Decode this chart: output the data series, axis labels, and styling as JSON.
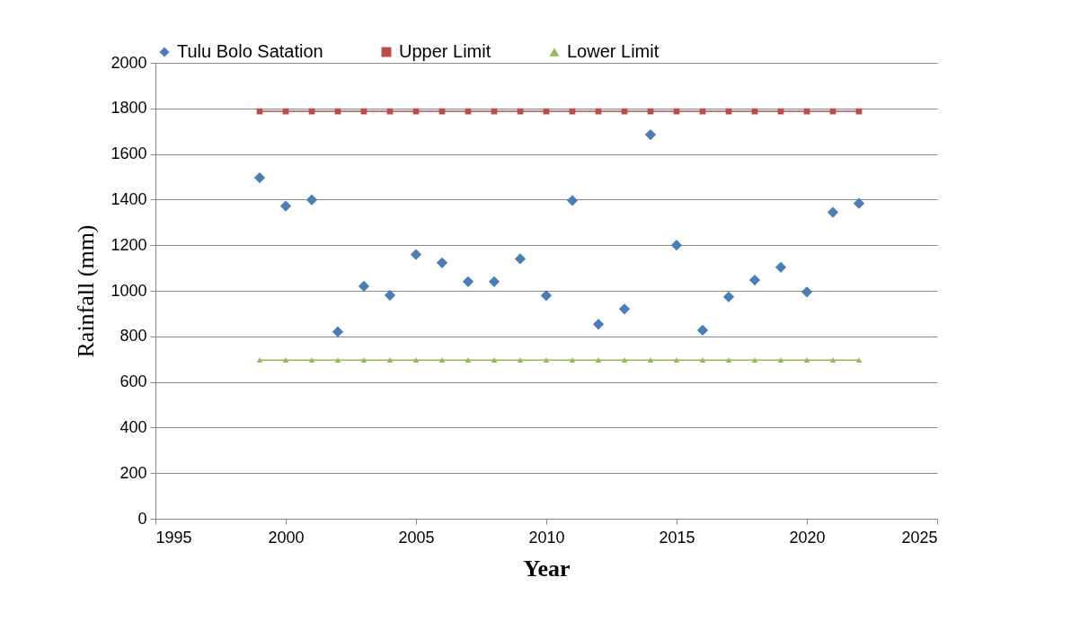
{
  "chart_data": {
    "type": "scatter",
    "xlabel": "Year",
    "ylabel": "Rainfall (mm)",
    "x": [
      1999,
      2000,
      2001,
      2002,
      2003,
      2004,
      2005,
      2006,
      2007,
      2008,
      2009,
      2010,
      2011,
      2012,
      2013,
      2014,
      2015,
      2016,
      2017,
      2018,
      2019,
      2020,
      2021,
      2022
    ],
    "series": [
      {
        "name": "Tulu Bolo Satation",
        "type": "scatter",
        "marker": "diamond",
        "color": "#4a7ebb",
        "values": [
          1496,
          1372,
          1399,
          820,
          1020,
          980,
          1159,
          1123,
          1040,
          1040,
          1140,
          979,
          1396,
          853,
          920,
          1685,
          1200,
          827,
          973,
          1047,
          1103,
          995,
          1344,
          1383
        ]
      },
      {
        "name": "Upper Limit",
        "type": "line",
        "marker": "square",
        "color": "#be4b48",
        "values": [
          1787,
          1787,
          1787,
          1787,
          1787,
          1787,
          1787,
          1787,
          1787,
          1787,
          1787,
          1787,
          1787,
          1787,
          1787,
          1787,
          1787,
          1787,
          1787,
          1787,
          1787,
          1787,
          1787,
          1787
        ]
      },
      {
        "name": "Lower Limit",
        "type": "line",
        "marker": "triangle",
        "color": "#98b954",
        "values": [
          696,
          696,
          696,
          696,
          696,
          696,
          696,
          696,
          696,
          696,
          696,
          696,
          696,
          696,
          696,
          696,
          696,
          696,
          696,
          696,
          696,
          696,
          696,
          696
        ]
      }
    ],
    "xlim": [
      1995,
      2025
    ],
    "xticks": [
      1995,
      2000,
      2005,
      2010,
      2015,
      2020,
      2025
    ],
    "ylim": [
      0,
      2000
    ],
    "yticks": [
      0,
      200,
      400,
      600,
      800,
      1000,
      1200,
      1400,
      1600,
      1800,
      2000
    ],
    "grid": "y",
    "legend": "top"
  }
}
